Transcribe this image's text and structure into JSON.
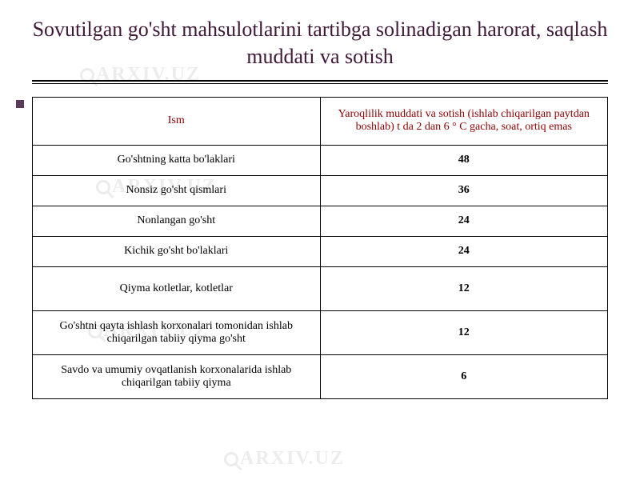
{
  "title": "Sovutilgan go'sht mahsulotlarini tartibga solinadigan harorat, saqlash muddati va sotish",
  "watermark_text": "ARXIV.UZ",
  "table": {
    "header_color": "#8b0000",
    "value_color": "#000000",
    "border_color": "#000000",
    "columns": [
      "Ism",
      "Yaroqlilik muddati va sotish (ishlab chiqarilgan paytdan boshlab) t da 2 dan 6 ° C gacha, soat, ortiq emas"
    ],
    "rows": [
      {
        "name": "Go'shtning katta bo'laklari",
        "value": "48",
        "height": "normal"
      },
      {
        "name": "Nonsiz go'sht qismlari",
        "value": "36",
        "height": "normal"
      },
      {
        "name": "Nonlangan go'sht",
        "value": "24",
        "height": "normal"
      },
      {
        "name": "Kichik go'sht bo'laklari",
        "value": "24",
        "height": "normal"
      },
      {
        "name": "Qiyma kotletlar, kotletlar",
        "value": "12",
        "height": "tall"
      },
      {
        "name": "Go'shtni qayta ishlash korxonalari tomonidan ishlab chiqarilgan tabiiy qiyma go'sht",
        "value": "12",
        "height": "tall"
      },
      {
        "name": "Savdo va umumiy ovqatlanish korxonalarida ishlab chiqarilgan tabiiy qiyma",
        "value": "6",
        "height": "tall"
      }
    ]
  },
  "styling": {
    "title_color": "#401838",
    "title_fontsize": 26,
    "background_color": "#ffffff",
    "watermark_color": "#d0d0d0",
    "bullet_color": "#5a3a5a",
    "font_family": "Georgia, Times New Roman, serif",
    "body_fontsize": 14
  }
}
